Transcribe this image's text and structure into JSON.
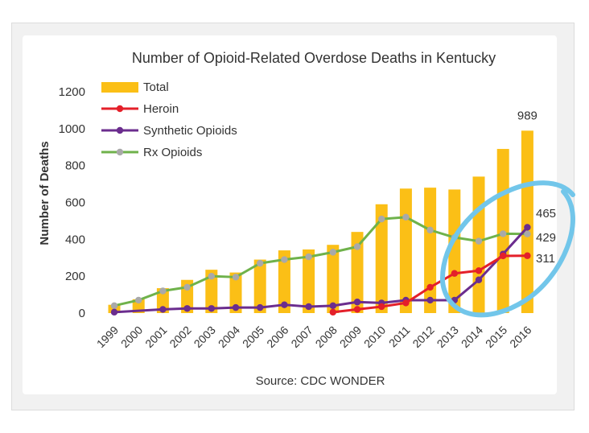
{
  "colors": {
    "total": "#fbbf16",
    "heroin": "#e4202a",
    "synthetic": "#6b2d8e",
    "rx": "#6fb24b",
    "rx_marker": "#a9a9a9",
    "highlight": "#72c6ea",
    "text": "#333333"
  },
  "chart_data": {
    "type": "bar",
    "title": "Number of Opioid-Related Overdose Deaths in Kentucky",
    "xlabel": "",
    "ylabel": "Number of Deaths",
    "source": "Source: CDC WONDER",
    "ylim": [
      0,
      1200
    ],
    "yticks": [
      0,
      200,
      400,
      600,
      800,
      1000,
      1200
    ],
    "grid": false,
    "legend_position": "top-left",
    "categories": [
      "1999",
      "2000",
      "2001",
      "2002",
      "2003",
      "2004",
      "2005",
      "2006",
      "2007",
      "2008",
      "2009",
      "2010",
      "2011",
      "2012",
      "2013",
      "2014",
      "2015",
      "2016"
    ],
    "series": [
      {
        "name": "Total",
        "type": "bar",
        "values": [
          45,
          75,
          135,
          180,
          235,
          220,
          290,
          340,
          345,
          370,
          440,
          590,
          675,
          680,
          670,
          740,
          890,
          989
        ]
      },
      {
        "name": "Heroin",
        "type": "line",
        "values": [
          null,
          null,
          null,
          null,
          null,
          null,
          null,
          null,
          null,
          5,
          20,
          35,
          55,
          140,
          215,
          230,
          310,
          311
        ]
      },
      {
        "name": "Synthetic Opioids",
        "type": "line",
        "values": [
          5,
          null,
          20,
          25,
          25,
          30,
          30,
          45,
          35,
          40,
          60,
          55,
          70,
          70,
          70,
          180,
          320,
          465
        ]
      },
      {
        "name": "Rx Opioids",
        "type": "line",
        "values": [
          40,
          70,
          120,
          140,
          200,
          195,
          270,
          290,
          305,
          330,
          360,
          510,
          520,
          450,
          410,
          390,
          430,
          429
        ]
      }
    ],
    "annotations": [
      "989",
      "465",
      "429",
      "311"
    ]
  }
}
